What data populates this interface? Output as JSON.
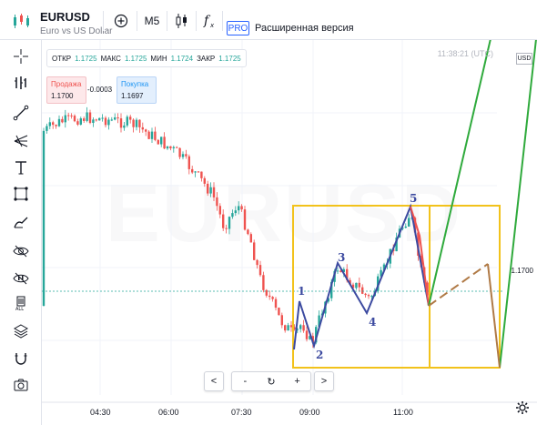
{
  "header": {
    "symbol": "EURUSD",
    "symbol_description": "Euro vs US Dollar",
    "timeframe": "M5",
    "pro_badge": "PRO",
    "extended_version_label": "Расширенная версия"
  },
  "ohlc": {
    "open_label": "ОТКР",
    "open_value": "1.1725",
    "high_label": "МАКС",
    "high_value": "1.1725",
    "low_label": "МИН",
    "low_value": "1.1724",
    "close_label": "ЗАКР",
    "close_value": "1.1725"
  },
  "trade": {
    "sell_label": "Продажа",
    "sell_price": "1.1700",
    "spread": "-0.0003",
    "buy_label": "Покупка",
    "buy_price": "1.1697"
  },
  "chart": {
    "time_display": "11:38:21 (UTC)",
    "currency_badge": "USD",
    "price_label": "1.1700",
    "watermark": "EURUSD",
    "x_axis": [
      "04:30",
      "06:00",
      "07:30",
      "09:00",
      "11:00"
    ],
    "wave_labels": [
      "1",
      "2",
      "3",
      "4",
      "5"
    ]
  },
  "navigation": {
    "prev": "<",
    "zoom_out": "-",
    "reset": "↻",
    "zoom_in": "+",
    "next": ">"
  },
  "colors": {
    "bull": "#26a69a",
    "bear": "#ef5350",
    "box": "#f2c21b",
    "wave": "#3c4aa0",
    "forecast_green": "#2faa3c",
    "forecast_brown": "#b07a46",
    "dotted_line": "#26a69a"
  }
}
